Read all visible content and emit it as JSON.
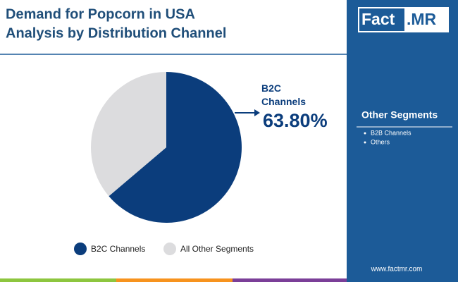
{
  "chart_data": {
    "type": "pie",
    "title": "Demand for Popcorn in USA",
    "subtitle": "Analysis by Distribution Channel",
    "categories": [
      "B2C Channels",
      "All Other Segments"
    ],
    "values": [
      63.8,
      36.2
    ],
    "value_labels": [
      "63.80%",
      null
    ],
    "colors": [
      "#0b3d7c",
      "#dcdcde"
    ],
    "legend": "bottom"
  },
  "sidebar": {
    "logo": [
      "Fact",
      ".MR"
    ],
    "heading": "Other Segments",
    "items": [
      "B2B Channels",
      "Others"
    ],
    "website": "www.factmr.com"
  }
}
